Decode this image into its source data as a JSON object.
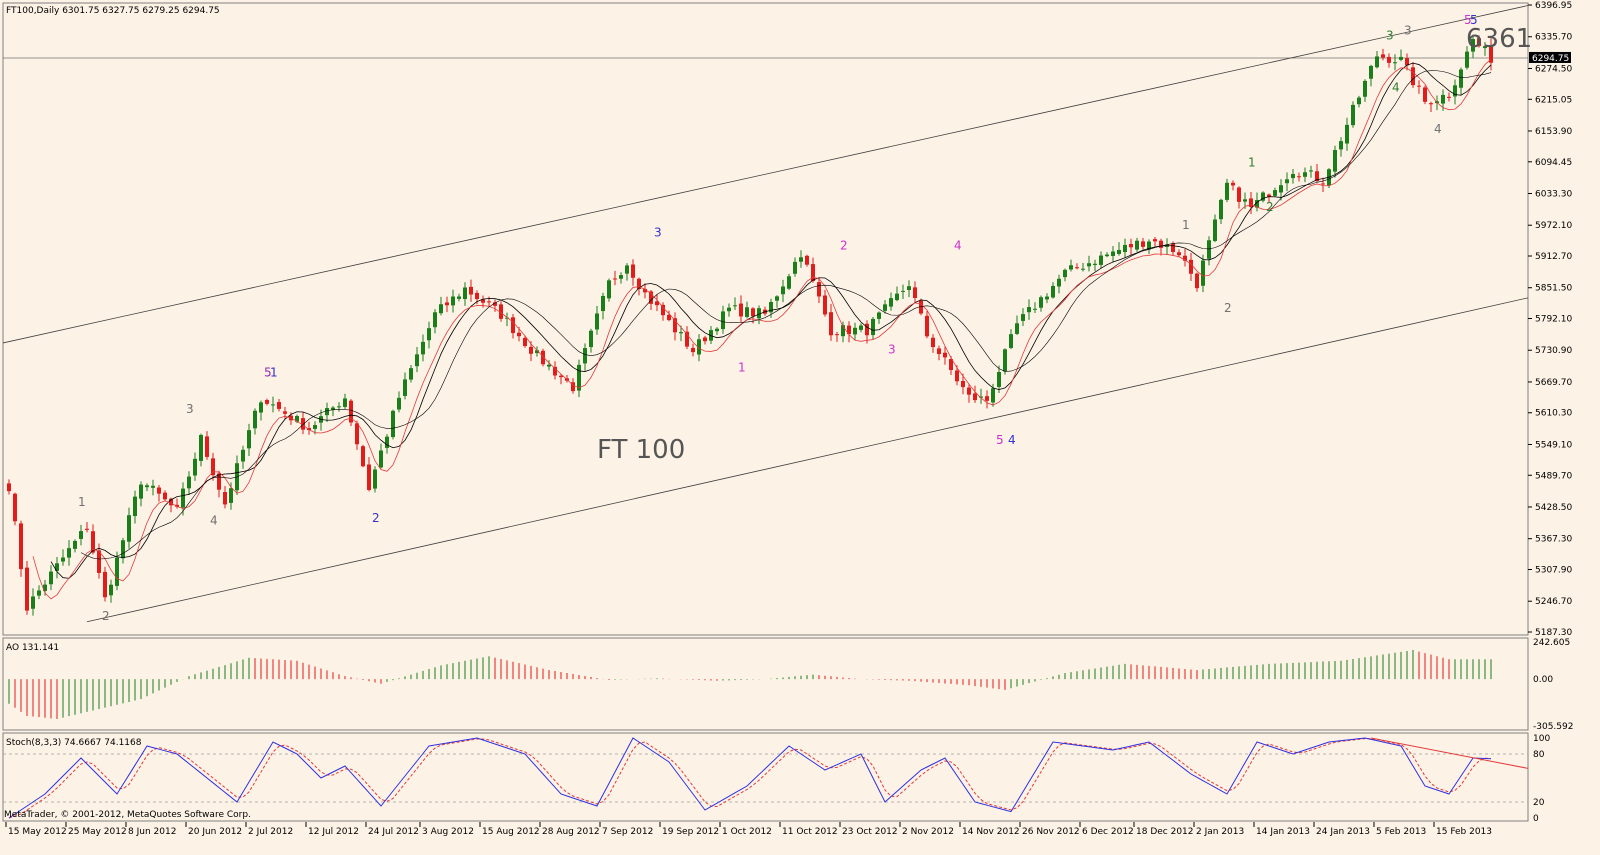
{
  "chart_data": {
    "type": "candlestick",
    "symbol_header": "FT100,Daily",
    "ohlc_header": "6301.75 6327.75 6279.25 6294.75",
    "current_price_label": "6294.75",
    "annotation_title": "FT 100",
    "annotation_target": "6361",
    "price_axis_ticks": [
      "6396.95",
      "6335.70",
      "6274.50",
      "6215.05",
      "6153.90",
      "6094.45",
      "6033.30",
      "5972.10",
      "5912.70",
      "5851.50",
      "5792.10",
      "5730.90",
      "5669.70",
      "5610.30",
      "5549.10",
      "5489.70",
      "5428.50",
      "5367.30",
      "5307.90",
      "5246.70",
      "5187.30"
    ],
    "price_range": [
      5187.3,
      6396.95
    ],
    "date_ticks": [
      "15 May 2012",
      "25 May 2012",
      "8 Jun 2012",
      "20 Jun 2012",
      "2 Jul 2012",
      "12 Jul 2012",
      "24 Jul 2012",
      "3 Aug 2012",
      "15 Aug 2012",
      "28 Aug 2012",
      "7 Sep 2012",
      "19 Sep 2012",
      "1 Oct 2012",
      "11 Oct 2012",
      "23 Oct 2012",
      "2 Nov 2012",
      "14 Nov 2012",
      "26 Nov 2012",
      "6 Dec 2012",
      "18 Dec 2012",
      "2 Jan 2013",
      "14 Jan 2013",
      "24 Jan 2013",
      "5 Feb 2013",
      "15 Feb 2013"
    ],
    "anchors": [
      {
        "bar": 0,
        "close": 5470
      },
      {
        "bar": 3,
        "close": 5235
      },
      {
        "bar": 9,
        "close": 5330
      },
      {
        "bar": 13,
        "close": 5390
      },
      {
        "bar": 16,
        "close": 5250
      },
      {
        "bar": 22,
        "close": 5480
      },
      {
        "bar": 28,
        "close": 5420
      },
      {
        "bar": 32,
        "close": 5560
      },
      {
        "bar": 36,
        "close": 5435
      },
      {
        "bar": 42,
        "close": 5640
      },
      {
        "bar": 50,
        "close": 5580
      },
      {
        "bar": 56,
        "close": 5640
      },
      {
        "bar": 60,
        "close": 5465
      },
      {
        "bar": 65,
        "close": 5640
      },
      {
        "bar": 71,
        "close": 5800
      },
      {
        "bar": 76,
        "close": 5850
      },
      {
        "bar": 82,
        "close": 5800
      },
      {
        "bar": 88,
        "close": 5720
      },
      {
        "bar": 94,
        "close": 5660
      },
      {
        "bar": 100,
        "close": 5860
      },
      {
        "bar": 103,
        "close": 5900
      },
      {
        "bar": 106,
        "close": 5840
      },
      {
        "bar": 114,
        "close": 5730
      },
      {
        "bar": 120,
        "close": 5810
      },
      {
        "bar": 126,
        "close": 5800
      },
      {
        "bar": 132,
        "close": 5920
      },
      {
        "bar": 137,
        "close": 5770
      },
      {
        "bar": 143,
        "close": 5770
      },
      {
        "bar": 150,
        "close": 5860
      },
      {
        "bar": 153,
        "close": 5760
      },
      {
        "bar": 160,
        "close": 5640
      },
      {
        "bar": 163,
        "close": 5635
      },
      {
        "bar": 168,
        "close": 5780
      },
      {
        "bar": 176,
        "close": 5880
      },
      {
        "bar": 184,
        "close": 5920
      },
      {
        "bar": 190,
        "close": 5945
      },
      {
        "bar": 195,
        "close": 5920
      },
      {
        "bar": 198,
        "close": 5860
      },
      {
        "bar": 203,
        "close": 6050
      },
      {
        "bar": 207,
        "close": 6005
      },
      {
        "bar": 214,
        "close": 6080
      },
      {
        "bar": 219,
        "close": 6060
      },
      {
        "bar": 228,
        "close": 6300
      },
      {
        "bar": 232,
        "close": 6290
      },
      {
        "bar": 236,
        "close": 6210
      },
      {
        "bar": 240,
        "close": 6225
      },
      {
        "bar": 244,
        "close": 6330
      },
      {
        "bar": 247,
        "close": 6295
      }
    ],
    "wave_labels": [
      {
        "text": "1",
        "bar": 12,
        "price": 5430,
        "color": "#707070"
      },
      {
        "text": "2",
        "bar": 16,
        "price": 5210,
        "color": "#707070"
      },
      {
        "text": "3",
        "bar": 30,
        "price": 5610,
        "color": "#707070"
      },
      {
        "text": "4",
        "bar": 34,
        "price": 5395,
        "color": "#707070"
      },
      {
        "text": "5",
        "bar": 43,
        "price": 5680,
        "color": "#9c27b0"
      },
      {
        "text": "1",
        "bar": 44,
        "price": 5680,
        "color": "#3333cc"
      },
      {
        "text": "2",
        "bar": 61,
        "price": 5400,
        "color": "#3333cc"
      },
      {
        "text": "3",
        "bar": 108,
        "price": 5950,
        "color": "#3333cc"
      },
      {
        "text": "1",
        "bar": 122,
        "price": 5690,
        "color": "#cc33cc"
      },
      {
        "text": "2",
        "bar": 139,
        "price": 5925,
        "color": "#cc33cc"
      },
      {
        "text": "3",
        "bar": 147,
        "price": 5725,
        "color": "#cc33cc"
      },
      {
        "text": "4",
        "bar": 158,
        "price": 5925,
        "color": "#cc33cc"
      },
      {
        "text": "5",
        "bar": 165,
        "price": 5550,
        "color": "#cc33cc"
      },
      {
        "text": "4",
        "bar": 167,
        "price": 5550,
        "color": "#3333cc"
      },
      {
        "text": "1",
        "bar": 196,
        "price": 5965,
        "color": "#707070"
      },
      {
        "text": "2",
        "bar": 203,
        "price": 5805,
        "color": "#707070"
      },
      {
        "text": "1",
        "bar": 207,
        "price": 6085,
        "color": "#2e7d32"
      },
      {
        "text": "2",
        "bar": 210,
        "price": 6000,
        "color": "#2e7d32"
      },
      {
        "text": "3",
        "bar": 230,
        "price": 6330,
        "color": "#2e7d32"
      },
      {
        "text": "4",
        "bar": 231,
        "price": 6230,
        "color": "#2e7d32"
      },
      {
        "text": "3",
        "bar": 233,
        "price": 6340,
        "color": "#707070"
      },
      {
        "text": "4",
        "bar": 238,
        "price": 6150,
        "color": "#707070"
      },
      {
        "text": "5",
        "bar": 243,
        "price": 6360,
        "color": "#cc33cc"
      },
      {
        "text": "5",
        "bar": 244,
        "price": 6360,
        "color": "#3333cc"
      }
    ],
    "channel_upper": {
      "start_price": 5745,
      "end_price": 6396
    },
    "channel_lower": {
      "start_bar": 13,
      "start_price": 5207,
      "end_price": 5832
    },
    "stoch_resistance": {
      "start_bar": 227,
      "start_value": 100,
      "end_value": 62
    },
    "ao": {
      "label": "AO 131.141",
      "ticks": [
        "242.605",
        "0.00",
        "-305.592"
      ],
      "range": [
        -305.592,
        242.605
      ],
      "anchors": [
        {
          "bar": 0,
          "value": -160
        },
        {
          "bar": 3,
          "value": -240
        },
        {
          "bar": 8,
          "value": -260
        },
        {
          "bar": 22,
          "value": -130
        },
        {
          "bar": 30,
          "value": 20
        },
        {
          "bar": 40,
          "value": 140
        },
        {
          "bar": 48,
          "value": 120
        },
        {
          "bar": 56,
          "value": 20
        },
        {
          "bar": 62,
          "value": -30
        },
        {
          "bar": 72,
          "value": 90
        },
        {
          "bar": 80,
          "value": 150
        },
        {
          "bar": 90,
          "value": 60
        },
        {
          "bar": 100,
          "value": -5
        },
        {
          "bar": 108,
          "value": 5
        },
        {
          "bar": 118,
          "value": -10
        },
        {
          "bar": 126,
          "value": 0
        },
        {
          "bar": 134,
          "value": 30
        },
        {
          "bar": 142,
          "value": 0
        },
        {
          "bar": 150,
          "value": -10
        },
        {
          "bar": 160,
          "value": -40
        },
        {
          "bar": 166,
          "value": -70
        },
        {
          "bar": 176,
          "value": 40
        },
        {
          "bar": 186,
          "value": 100
        },
        {
          "bar": 198,
          "value": 60
        },
        {
          "bar": 210,
          "value": 100
        },
        {
          "bar": 222,
          "value": 120
        },
        {
          "bar": 234,
          "value": 190
        },
        {
          "bar": 240,
          "value": 130
        },
        {
          "bar": 247,
          "value": 130
        }
      ]
    },
    "stochastic": {
      "label": "Stoch(8,3,3) 74.6667 74.1168",
      "ticks": [
        "100",
        "80",
        "20",
        "0"
      ],
      "range": [
        0,
        100
      ],
      "levels": [
        80,
        20
      ],
      "anchors": [
        {
          "bar": 0,
          "value": 0
        },
        {
          "bar": 6,
          "value": 30
        },
        {
          "bar": 12,
          "value": 75
        },
        {
          "bar": 18,
          "value": 30
        },
        {
          "bar": 23,
          "value": 90
        },
        {
          "bar": 28,
          "value": 80
        },
        {
          "bar": 33,
          "value": 50
        },
        {
          "bar": 38,
          "value": 20
        },
        {
          "bar": 44,
          "value": 95
        },
        {
          "bar": 48,
          "value": 80
        },
        {
          "bar": 52,
          "value": 50
        },
        {
          "bar": 56,
          "value": 65
        },
        {
          "bar": 62,
          "value": 15
        },
        {
          "bar": 70,
          "value": 90
        },
        {
          "bar": 78,
          "value": 100
        },
        {
          "bar": 86,
          "value": 80
        },
        {
          "bar": 92,
          "value": 30
        },
        {
          "bar": 98,
          "value": 15
        },
        {
          "bar": 104,
          "value": 100
        },
        {
          "bar": 110,
          "value": 70
        },
        {
          "bar": 116,
          "value": 10
        },
        {
          "bar": 123,
          "value": 40
        },
        {
          "bar": 130,
          "value": 90
        },
        {
          "bar": 136,
          "value": 60
        },
        {
          "bar": 142,
          "value": 80
        },
        {
          "bar": 146,
          "value": 20
        },
        {
          "bar": 152,
          "value": 60
        },
        {
          "bar": 156,
          "value": 75
        },
        {
          "bar": 161,
          "value": 20
        },
        {
          "bar": 167,
          "value": 8
        },
        {
          "bar": 174,
          "value": 95
        },
        {
          "bar": 184,
          "value": 85
        },
        {
          "bar": 190,
          "value": 95
        },
        {
          "bar": 197,
          "value": 55
        },
        {
          "bar": 203,
          "value": 30
        },
        {
          "bar": 208,
          "value": 95
        },
        {
          "bar": 214,
          "value": 80
        },
        {
          "bar": 220,
          "value": 95
        },
        {
          "bar": 226,
          "value": 100
        },
        {
          "bar": 232,
          "value": 90
        },
        {
          "bar": 236,
          "value": 40
        },
        {
          "bar": 240,
          "value": 30
        },
        {
          "bar": 244,
          "value": 75
        },
        {
          "bar": 247,
          "value": 74
        }
      ]
    }
  },
  "footer": {
    "copyright": "MetaTrader, © 2001-2012, MetaQuotes Software Corp."
  },
  "colors": {
    "background": "#fcf2e6",
    "bull_candle": "#1a7f1a",
    "bear_candle": "#e21b1b",
    "ma_fast": "#000000",
    "ma_slow": "#e23b3b",
    "stoch_main": "#3030e0",
    "stoch_signal": "#e23b3b",
    "channel": "#404040"
  }
}
